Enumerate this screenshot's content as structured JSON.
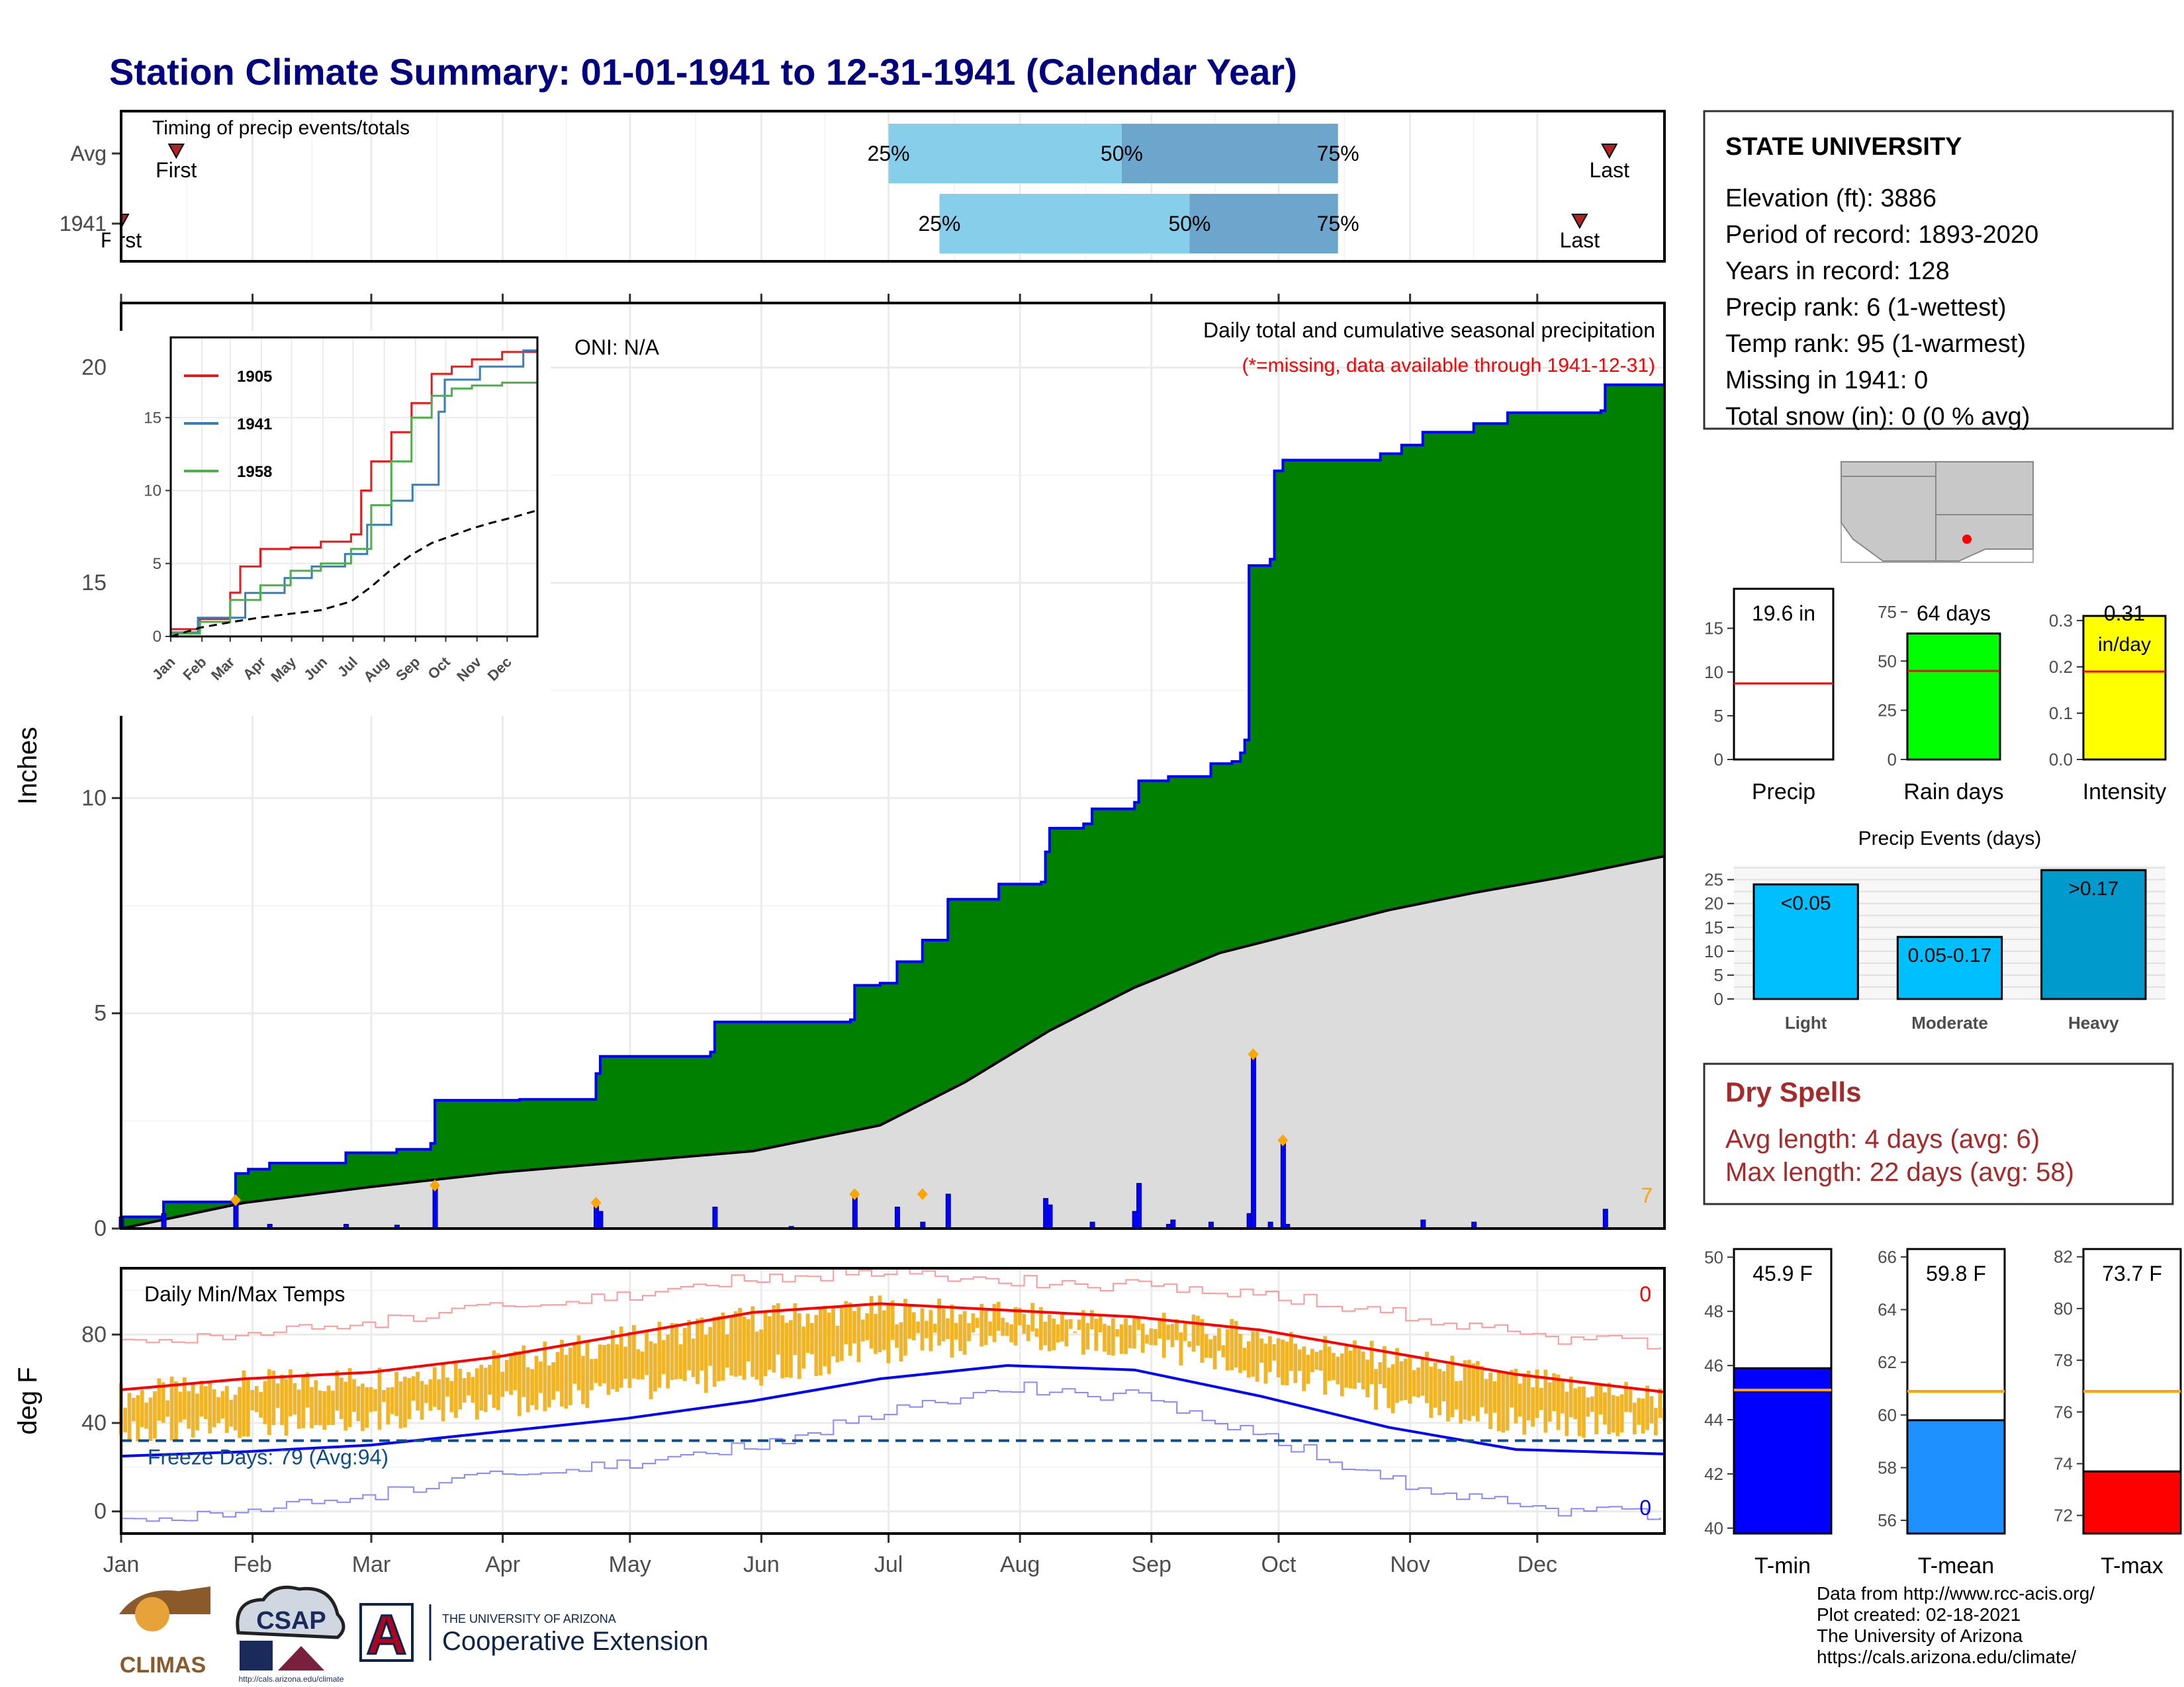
{
  "title": "Station Climate Summary: 01-01-1941 to 12-31-1941 (Calendar Year)",
  "colors": {
    "title": "#000080",
    "cum_fill": "#008000",
    "cum_line": "#0000ff",
    "avg_fill": "#dcdcdc",
    "daily_bar": "#0000ff",
    "marker": "#ffa500",
    "temp_bar": "#f0b429",
    "temp_max_avg": "#ff0000",
    "temp_min_avg": "#0000ff",
    "light_blue": "#87ceeb",
    "mid_blue": "#6ca6cd",
    "dry_title": "#a52a2a",
    "precip_events": "#00bfff",
    "heavy": "#009acd",
    "raindays": "#00ff00",
    "intensity": "#ffff00",
    "tmin": "#0000ff",
    "tmean": "#1e90ff",
    "tmax": "#ff0000"
  },
  "months": [
    "Jan",
    "Feb",
    "Mar",
    "Apr",
    "May",
    "Jun",
    "Jul",
    "Aug",
    "Sep",
    "Oct",
    "Nov",
    "Dec"
  ],
  "timing": {
    "title": "Timing of precip events/totals",
    "rows": [
      {
        "label": "Avg",
        "first_day": 14,
        "last_day": 352,
        "first_label": "First",
        "last_label": "Last",
        "p25": 182,
        "p50": 237,
        "p75": 288
      },
      {
        "label": "1941",
        "first_day": 1,
        "last_day": 345,
        "first_label": "First",
        "last_label": "Last",
        "p25": 194,
        "p50": 253,
        "p75": 288
      }
    ],
    "pct_labels": [
      "25%",
      "50%",
      "75%"
    ]
  },
  "main": {
    "ylabel": "Inches",
    "ylim": [
      0,
      21.5
    ],
    "yticks": [
      0,
      5,
      10,
      15,
      20
    ],
    "oni": "ONI: N/A",
    "caption": "Daily total and cumulative seasonal precipitation",
    "missing_note": "(*=missing, data available through 1941-12-31)",
    "corner_count": "7"
  },
  "inset": {
    "ylim": [
      0,
      20.5
    ],
    "yticks": [
      0,
      5,
      10,
      15
    ],
    "months": [
      "Jan",
      "Feb",
      "Mar",
      "Apr",
      "May",
      "Jun",
      "Jul",
      "Aug",
      "Sep",
      "Oct",
      "Nov",
      "Dec"
    ],
    "legend": [
      {
        "name": "1905",
        "color": "#e41a1c"
      },
      {
        "name": "1941",
        "color": "#377eb8"
      },
      {
        "name": "1958",
        "color": "#4daf4a"
      }
    ]
  },
  "temps": {
    "title": "Daily Min/Max Temps",
    "ylabel": "deg F",
    "ylim": [
      -10,
      110
    ],
    "yticks": [
      0,
      40,
      80
    ],
    "freeze_line": 32,
    "freeze_text": "Freeze Days: 79 (Avg:94)",
    "count_top": "0",
    "count_bottom": "0"
  },
  "station": {
    "name": "STATE UNIVERSITY",
    "lines": [
      "Elevation (ft): 3886",
      "Period of record: 1893-2020",
      "Years in record: 128",
      "Precip rank: 6 (1-wettest)",
      "Temp rank: 95 (1-warmest)",
      "Missing in 1941: 0",
      "Total snow (in): 0 (0 % avg)"
    ]
  },
  "small_bars": [
    {
      "label": "Precip",
      "value": 19.6,
      "avg": 8.7,
      "ymax": 18,
      "ticks": [
        0,
        5,
        10,
        15
      ],
      "box_text": "19.6 in",
      "box_text2": "",
      "color": "#ffffff"
    },
    {
      "label": "Rain days",
      "value": 64,
      "avg": 45,
      "ymax": 80,
      "ticks": [
        0,
        25,
        50,
        75
      ],
      "box_text": "64 days",
      "box_text2": "",
      "color": "#00ff00"
    },
    {
      "label": "Intensity",
      "value": 0.31,
      "avg": 0.19,
      "ymax": 0.34,
      "ticks": [
        "0.0",
        "0.1",
        "0.2",
        "0.3"
      ],
      "box_text": "0.31",
      "box_text2": "in/day",
      "color": "#ffff00"
    }
  ],
  "precip_events": {
    "title": "Precip Events (days)",
    "ylim": [
      0,
      28
    ],
    "yticks": [
      0,
      5,
      10,
      15,
      20,
      25
    ],
    "bars": [
      {
        "label": "Light",
        "value": 24,
        "text": "<0.05",
        "color": "#00bfff"
      },
      {
        "label": "Moderate",
        "value": 13,
        "text": "0.05-0.17",
        "color": "#00bfff"
      },
      {
        "label": "Heavy",
        "value": 27,
        "text": ">0.17",
        "color": "#009acd"
      }
    ]
  },
  "dry_spells": {
    "title": "Dry Spells",
    "avg_line": "Avg length: 4 days (avg: 6)",
    "max_line": "Max length: 22 days (avg: 58)"
  },
  "temp_bars": [
    {
      "label": "T-min",
      "value": 45.9,
      "avg": 45.1,
      "ylim": [
        39.8,
        50.3
      ],
      "ticks": [
        40,
        42,
        44,
        46,
        48,
        50
      ],
      "box_text": "45.9 F",
      "color": "#0000ff"
    },
    {
      "label": "T-mean",
      "value": 59.8,
      "avg": 60.9,
      "ylim": [
        55.5,
        66.3
      ],
      "ticks": [
        56,
        58,
        60,
        62,
        64,
        66
      ],
      "box_text": "59.8 F",
      "color": "#1e90ff"
    },
    {
      "label": "T-max",
      "value": 73.7,
      "avg": 76.8,
      "ylim": [
        71.3,
        82.3
      ],
      "ticks": [
        72,
        74,
        76,
        78,
        80,
        82
      ],
      "box_text": "73.7 F",
      "color": "#ff0000"
    }
  ],
  "footer": {
    "lines": [
      "Data from http://www.rcc-acis.org/",
      "Plot created: 02-18-2021",
      "The University of Arizona",
      "https://cals.arizona.edu/climate/"
    ],
    "climas": "CLIMAS",
    "csap": "CSAP",
    "csap_url": "http://cals.arizona.edu/climate",
    "ua_line1": "THE UNIVERSITY OF ARIZONA",
    "ua_line2": "Cooperative Extension",
    "ua_letter": "A"
  },
  "chart_data": [
    {
      "type": "area",
      "title": "Daily total and cumulative seasonal precipitation",
      "ylabel": "Inches",
      "ylim": [
        0,
        21.5
      ],
      "x_unit": "day of year 1941",
      "cumulative_1941": [
        [
          1,
          0.27
        ],
        [
          10,
          0.27
        ],
        [
          11,
          0.62
        ],
        [
          27,
          0.62
        ],
        [
          28,
          1.28
        ],
        [
          31,
          1.38
        ],
        [
          36,
          1.52
        ],
        [
          54,
          1.76
        ],
        [
          66,
          1.84
        ],
        [
          74,
          1.98
        ],
        [
          75,
          2.98
        ],
        [
          95,
          3.0
        ],
        [
          112,
          3.0
        ],
        [
          113,
          3.6
        ],
        [
          114,
          4.0
        ],
        [
          140,
          4.1
        ],
        [
          141,
          4.8
        ],
        [
          173,
          4.85
        ],
        [
          174,
          5.65
        ],
        [
          180,
          5.7
        ],
        [
          184,
          6.2
        ],
        [
          190,
          6.7
        ],
        [
          196,
          7.65
        ],
        [
          208,
          8.0
        ],
        [
          218,
          8.05
        ],
        [
          219,
          8.75
        ],
        [
          220,
          9.3
        ],
        [
          228,
          9.4
        ],
        [
          230,
          9.75
        ],
        [
          240,
          9.9
        ],
        [
          241,
          10.4
        ],
        [
          248,
          10.5
        ],
        [
          258,
          10.8
        ],
        [
          263,
          10.85
        ],
        [
          265,
          11.05
        ],
        [
          266,
          11.35
        ],
        [
          267,
          15.4
        ],
        [
          272,
          15.55
        ],
        [
          273,
          17.6
        ],
        [
          275,
          17.85
        ],
        [
          298,
          18.0
        ],
        [
          303,
          18.2
        ],
        [
          308,
          18.5
        ],
        [
          320,
          18.7
        ],
        [
          328,
          18.95
        ],
        [
          350,
          19.0
        ],
        [
          351,
          19.6
        ],
        [
          365,
          19.6
        ]
      ],
      "cumulative_avg": [
        [
          1,
          0
        ],
        [
          30,
          0.6
        ],
        [
          60,
          0.97
        ],
        [
          90,
          1.3
        ],
        [
          120,
          1.55
        ],
        [
          150,
          1.8
        ],
        [
          180,
          2.4
        ],
        [
          200,
          3.4
        ],
        [
          220,
          4.6
        ],
        [
          240,
          5.6
        ],
        [
          260,
          6.4
        ],
        [
          280,
          6.9
        ],
        [
          300,
          7.4
        ],
        [
          320,
          7.8
        ],
        [
          340,
          8.15
        ],
        [
          365,
          8.65
        ]
      ],
      "daily_1941": [
        [
          1,
          0.27
        ],
        [
          11,
          0.35
        ],
        [
          28,
          0.66
        ],
        [
          36,
          0.1
        ],
        [
          54,
          0.1
        ],
        [
          66,
          0.08
        ],
        [
          75,
          1.0
        ],
        [
          113,
          0.6
        ],
        [
          114,
          0.4
        ],
        [
          141,
          0.5
        ],
        [
          159,
          0.05
        ],
        [
          174,
          0.8
        ],
        [
          184,
          0.5
        ],
        [
          190,
          0.15
        ],
        [
          196,
          0.8
        ],
        [
          219,
          0.7
        ],
        [
          220,
          0.55
        ],
        [
          230,
          0.15
        ],
        [
          240,
          0.4
        ],
        [
          241,
          1.05
        ],
        [
          248,
          0.1
        ],
        [
          249,
          0.2
        ],
        [
          258,
          0.15
        ],
        [
          267,
          0.35
        ],
        [
          268,
          4.05
        ],
        [
          272,
          0.15
        ],
        [
          275,
          2.05
        ],
        [
          276,
          0.1
        ],
        [
          308,
          0.2
        ],
        [
          320,
          0.15
        ],
        [
          351,
          0.45
        ]
      ],
      "marker_days": [
        [
          28,
          0.66
        ],
        [
          75,
          1.0
        ],
        [
          113,
          0.6
        ],
        [
          174,
          0.8
        ],
        [
          190,
          0.8
        ],
        [
          268,
          4.05
        ],
        [
          275,
          2.05
        ]
      ]
    },
    {
      "type": "line",
      "title": "Cumulative precipitation comparison",
      "ylim": [
        0,
        20.5
      ],
      "series": [
        {
          "name": "1905",
          "points": [
            [
              1,
              0.5
            ],
            [
              30,
              1.2
            ],
            [
              60,
              3.0
            ],
            [
              70,
              4.8
            ],
            [
              90,
              6.0
            ],
            [
              120,
              6.1
            ],
            [
              150,
              6.5
            ],
            [
              180,
              7.0
            ],
            [
              190,
              10.0
            ],
            [
              200,
              12.0
            ],
            [
              220,
              14.0
            ],
            [
              240,
              16.0
            ],
            [
              260,
              18.0
            ],
            [
              280,
              18.5
            ],
            [
              300,
              19.0
            ],
            [
              330,
              19.5
            ],
            [
              365,
              19.8
            ]
          ]
        },
        {
          "name": "1941",
          "points": [
            [
              1,
              0.27
            ],
            [
              28,
              1.28
            ],
            [
              75,
              2.98
            ],
            [
              114,
              4.0
            ],
            [
              141,
              4.8
            ],
            [
              174,
              5.65
            ],
            [
              196,
              7.65
            ],
            [
              220,
              9.3
            ],
            [
              241,
              10.4
            ],
            [
              267,
              15.4
            ],
            [
              273,
              17.6
            ],
            [
              308,
              18.5
            ],
            [
              351,
              19.6
            ],
            [
              365,
              19.6
            ]
          ]
        },
        {
          "name": "1958",
          "points": [
            [
              1,
              0.2
            ],
            [
              30,
              1.0
            ],
            [
              60,
              2.5
            ],
            [
              90,
              3.5
            ],
            [
              120,
              4.5
            ],
            [
              150,
              5.0
            ],
            [
              180,
              6.0
            ],
            [
              200,
              9.0
            ],
            [
              220,
              12.0
            ],
            [
              240,
              15.0
            ],
            [
              260,
              16.5
            ],
            [
              280,
              17.0
            ],
            [
              300,
              17.2
            ],
            [
              330,
              17.4
            ],
            [
              365,
              17.5
            ]
          ]
        },
        {
          "name": "avg",
          "points": [
            [
              1,
              0
            ],
            [
              30,
              0.6
            ],
            [
              60,
              0.97
            ],
            [
              90,
              1.3
            ],
            [
              120,
              1.55
            ],
            [
              150,
              1.8
            ],
            [
              180,
              2.4
            ],
            [
              200,
              3.4
            ],
            [
              220,
              4.6
            ],
            [
              240,
              5.6
            ],
            [
              260,
              6.4
            ],
            [
              280,
              6.9
            ],
            [
              300,
              7.4
            ],
            [
              320,
              7.8
            ],
            [
              340,
              8.15
            ],
            [
              365,
              8.65
            ]
          ]
        }
      ]
    },
    {
      "type": "bar",
      "title": "Daily Min/Max Temps",
      "ylabel": "deg F",
      "ylim": [
        -10,
        110
      ],
      "avg_max": [
        [
          1,
          55
        ],
        [
          30,
          60
        ],
        [
          60,
          63
        ],
        [
          90,
          70
        ],
        [
          120,
          80
        ],
        [
          150,
          90
        ],
        [
          180,
          94
        ],
        [
          210,
          91
        ],
        [
          240,
          88
        ],
        [
          270,
          82
        ],
        [
          300,
          72
        ],
        [
          330,
          62
        ],
        [
          365,
          54
        ]
      ],
      "avg_min": [
        [
          1,
          25
        ],
        [
          30,
          27
        ],
        [
          60,
          30
        ],
        [
          90,
          36
        ],
        [
          120,
          42
        ],
        [
          150,
          50
        ],
        [
          180,
          60
        ],
        [
          210,
          66
        ],
        [
          240,
          64
        ],
        [
          270,
          52
        ],
        [
          300,
          38
        ],
        [
          330,
          28
        ],
        [
          365,
          26
        ]
      ],
      "record_max": [
        [
          1,
          75
        ],
        [
          30,
          80
        ],
        [
          60,
          86
        ],
        [
          90,
          92
        ],
        [
          120,
          98
        ],
        [
          150,
          106
        ],
        [
          180,
          108
        ],
        [
          210,
          104
        ],
        [
          240,
          102
        ],
        [
          270,
          98
        ],
        [
          300,
          90
        ],
        [
          330,
          80
        ],
        [
          365,
          75
        ]
      ],
      "record_min": [
        [
          1,
          -6
        ],
        [
          30,
          0
        ],
        [
          60,
          8
        ],
        [
          90,
          16
        ],
        [
          120,
          22
        ],
        [
          150,
          30
        ],
        [
          180,
          44
        ],
        [
          210,
          56
        ],
        [
          240,
          52
        ],
        [
          270,
          34
        ],
        [
          300,
          14
        ],
        [
          330,
          2
        ],
        [
          365,
          -2
        ]
      ]
    },
    {
      "type": "bar",
      "categories": [
        "Precip",
        "Rain days",
        "Intensity"
      ],
      "values": [
        19.6,
        64,
        0.31
      ],
      "averages": [
        8.7,
        45,
        0.19
      ]
    },
    {
      "type": "bar",
      "title": "Precip Events (days)",
      "categories": [
        "Light",
        "Moderate",
        "Heavy"
      ],
      "values": [
        24,
        13,
        27
      ]
    },
    {
      "type": "bar",
      "categories": [
        "T-min",
        "T-mean",
        "T-max"
      ],
      "values": [
        45.9,
        59.8,
        73.7
      ],
      "averages": [
        45.1,
        60.9,
        76.8
      ]
    }
  ]
}
